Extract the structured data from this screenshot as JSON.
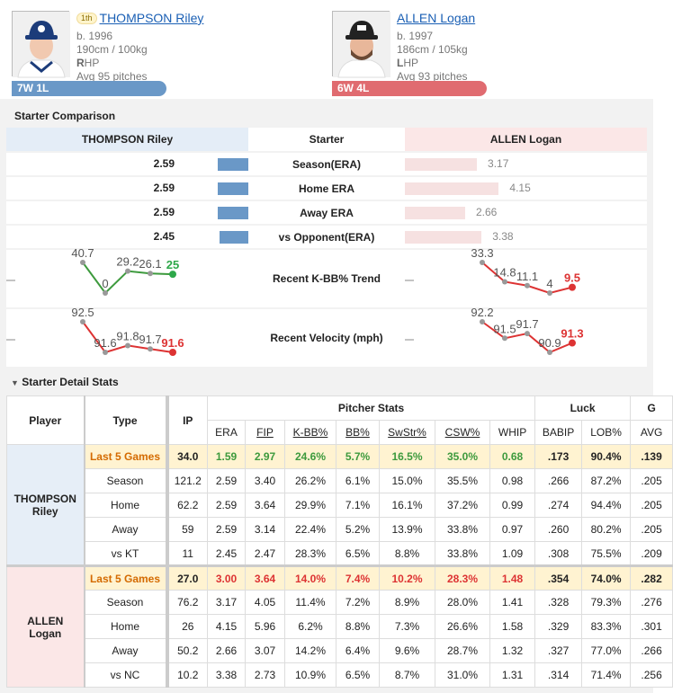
{
  "home": {
    "name": "THOMPSON Riley",
    "rank": "1th",
    "born": "b. 1996",
    "body": "190cm / 100kg",
    "hand_bold": "R",
    "hand_rest": "HP",
    "avg": "Avg 95 pitches",
    "record": "7W 1L",
    "color": "#6a98c7"
  },
  "away": {
    "name": "ALLEN Logan",
    "born": "b. 1997",
    "body": "186cm / 105kg",
    "hand_bold": "L",
    "hand_rest": "HP",
    "avg": "Avg 93 pitches",
    "record": "6W 4L",
    "color": "#e06b70"
  },
  "comparison": {
    "title": "Starter Comparison",
    "header_mid": "Starter",
    "rows": [
      {
        "label": "Season(ERA)",
        "home": "2.59",
        "away": "3.17",
        "home_frac": 0.53,
        "away_frac": 0.71
      },
      {
        "label": "Home ERA",
        "home": "2.59",
        "away": "4.15",
        "home_frac": 0.53,
        "away_frac": 0.92
      },
      {
        "label": "Away ERA",
        "home": "2.59",
        "away": "2.66",
        "home_frac": 0.53,
        "away_frac": 0.59
      },
      {
        "label": "vs Opponent(ERA)",
        "home": "2.45",
        "away": "3.38",
        "home_frac": 0.5,
        "away_frac": 0.75
      }
    ],
    "trend_kbb": {
      "label": "Recent K-BB% Trend",
      "home": [
        "40.7",
        "0",
        "29.2",
        "26.1",
        "25"
      ],
      "away": [
        "33.3",
        "14.8",
        "11.1",
        "4",
        "9.5"
      ]
    },
    "trend_velo": {
      "label": "Recent Velocity (mph)",
      "home": [
        "92.5",
        "91.6",
        "91.8",
        "91.7",
        "91.6"
      ],
      "away": [
        "92.2",
        "91.5",
        "91.7",
        "90.9",
        "91.3"
      ]
    }
  },
  "detail": {
    "title": "Starter Detail Stats",
    "headers": {
      "player": "Player",
      "type": "Type",
      "ip": "IP",
      "pitcher_stats": "Pitcher Stats",
      "luck": "Luck",
      "cols": [
        "ERA",
        "FIP",
        "K-BB%",
        "BB%",
        "SwStr%",
        "CSW%",
        "WHIP",
        "BABIP",
        "LOB%",
        "AVG"
      ]
    },
    "home_label": "THOMPSON Riley",
    "away_label": "ALLEN Logan",
    "home_rows": [
      {
        "type": "Last 5 Games",
        "v": [
          "34.0",
          "1.59",
          "2.97",
          "24.6%",
          "5.7%",
          "16.5%",
          "35.0%",
          "0.68",
          ".173",
          "90.4%",
          ".139"
        ]
      },
      {
        "type": "Season",
        "v": [
          "121.2",
          "2.59",
          "3.40",
          "26.2%",
          "6.1%",
          "15.0%",
          "35.5%",
          "0.98",
          ".266",
          "87.2%",
          ".205"
        ]
      },
      {
        "type": "Home",
        "v": [
          "62.2",
          "2.59",
          "3.64",
          "29.9%",
          "7.1%",
          "16.1%",
          "37.2%",
          "0.99",
          ".274",
          "94.4%",
          ".205"
        ]
      },
      {
        "type": "Away",
        "v": [
          "59",
          "2.59",
          "3.14",
          "22.4%",
          "5.2%",
          "13.9%",
          "33.8%",
          "0.97",
          ".260",
          "80.2%",
          ".205"
        ]
      },
      {
        "type": "vs KT",
        "v": [
          "11",
          "2.45",
          "2.47",
          "28.3%",
          "6.5%",
          "8.8%",
          "33.8%",
          "1.09",
          ".308",
          "75.5%",
          ".209"
        ]
      }
    ],
    "away_rows": [
      {
        "type": "Last 5 Games",
        "v": [
          "27.0",
          "3.00",
          "3.64",
          "14.0%",
          "7.4%",
          "10.2%",
          "28.3%",
          "1.48",
          ".354",
          "74.0%",
          ".282"
        ]
      },
      {
        "type": "Season",
        "v": [
          "76.2",
          "3.17",
          "4.05",
          "11.4%",
          "7.2%",
          "8.9%",
          "28.0%",
          "1.41",
          ".328",
          "79.3%",
          ".276"
        ]
      },
      {
        "type": "Home",
        "v": [
          "26",
          "4.15",
          "5.96",
          "6.2%",
          "8.8%",
          "7.3%",
          "26.6%",
          "1.58",
          ".329",
          "83.3%",
          ".301"
        ]
      },
      {
        "type": "Away",
        "v": [
          "50.2",
          "2.66",
          "3.07",
          "14.2%",
          "6.4%",
          "9.6%",
          "28.7%",
          "1.32",
          ".327",
          "77.0%",
          ".266"
        ]
      },
      {
        "type": "vs NC",
        "v": [
          "10.2",
          "3.38",
          "2.73",
          "10.9%",
          "6.5%",
          "8.7%",
          "31.0%",
          "1.31",
          ".314",
          "71.4%",
          ".256"
        ]
      }
    ]
  }
}
